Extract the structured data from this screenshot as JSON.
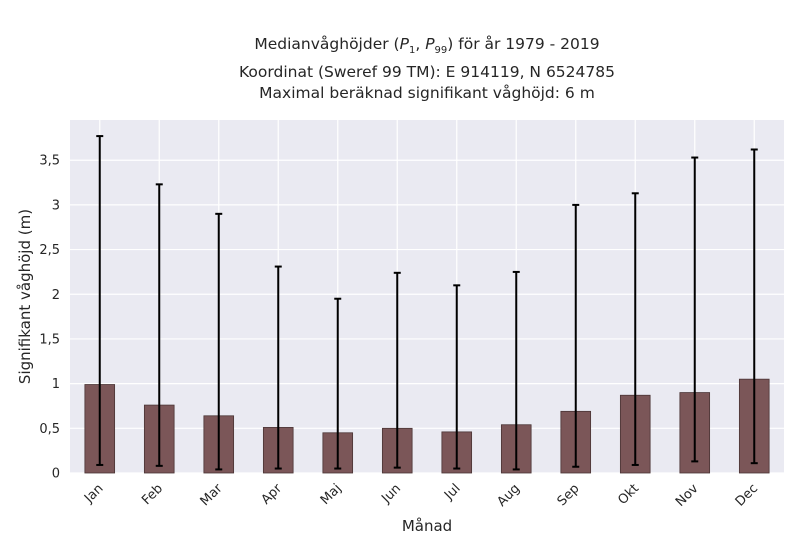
{
  "chart_data": {
    "type": "bar",
    "title_lines": [
      "Medianvåghöjder (P1, P99) för år 1979 - 2019",
      "Koordinat (Sweref 99 TM): E 914119, N 6524785",
      "Maximal beräknad signifikant våghöjd: 6 m"
    ],
    "xlabel": "Månad",
    "ylabel": "Signifikant våghöjd (m)",
    "categories": [
      "Jan",
      "Feb",
      "Mar",
      "Apr",
      "Maj",
      "Jun",
      "Jul",
      "Aug",
      "Sep",
      "Okt",
      "Nov",
      "Dec"
    ],
    "values": [
      0.99,
      0.76,
      0.64,
      0.51,
      0.45,
      0.5,
      0.46,
      0.54,
      0.69,
      0.87,
      0.9,
      1.05
    ],
    "p1": [
      0.09,
      0.08,
      0.04,
      0.05,
      0.05,
      0.06,
      0.05,
      0.04,
      0.07,
      0.09,
      0.13,
      0.11
    ],
    "p99": [
      3.77,
      3.23,
      2.9,
      2.31,
      1.95,
      2.24,
      2.1,
      2.25,
      3.0,
      3.13,
      3.53,
      3.62
    ],
    "ylim": [
      0,
      3.95
    ],
    "yticks": [
      "0",
      "0,5",
      "1",
      "1,5",
      "2",
      "2,5",
      "3",
      "3,5"
    ],
    "ytick_values": [
      0,
      0.5,
      1,
      1.5,
      2,
      2.5,
      3,
      3.5
    ],
    "grid": true,
    "colors": {
      "bar": "#7b5658",
      "bar_edge": "#4a3435",
      "errorbar": "#000000",
      "plot_bg": "#eaeaf2",
      "grid": "#ffffff"
    }
  }
}
